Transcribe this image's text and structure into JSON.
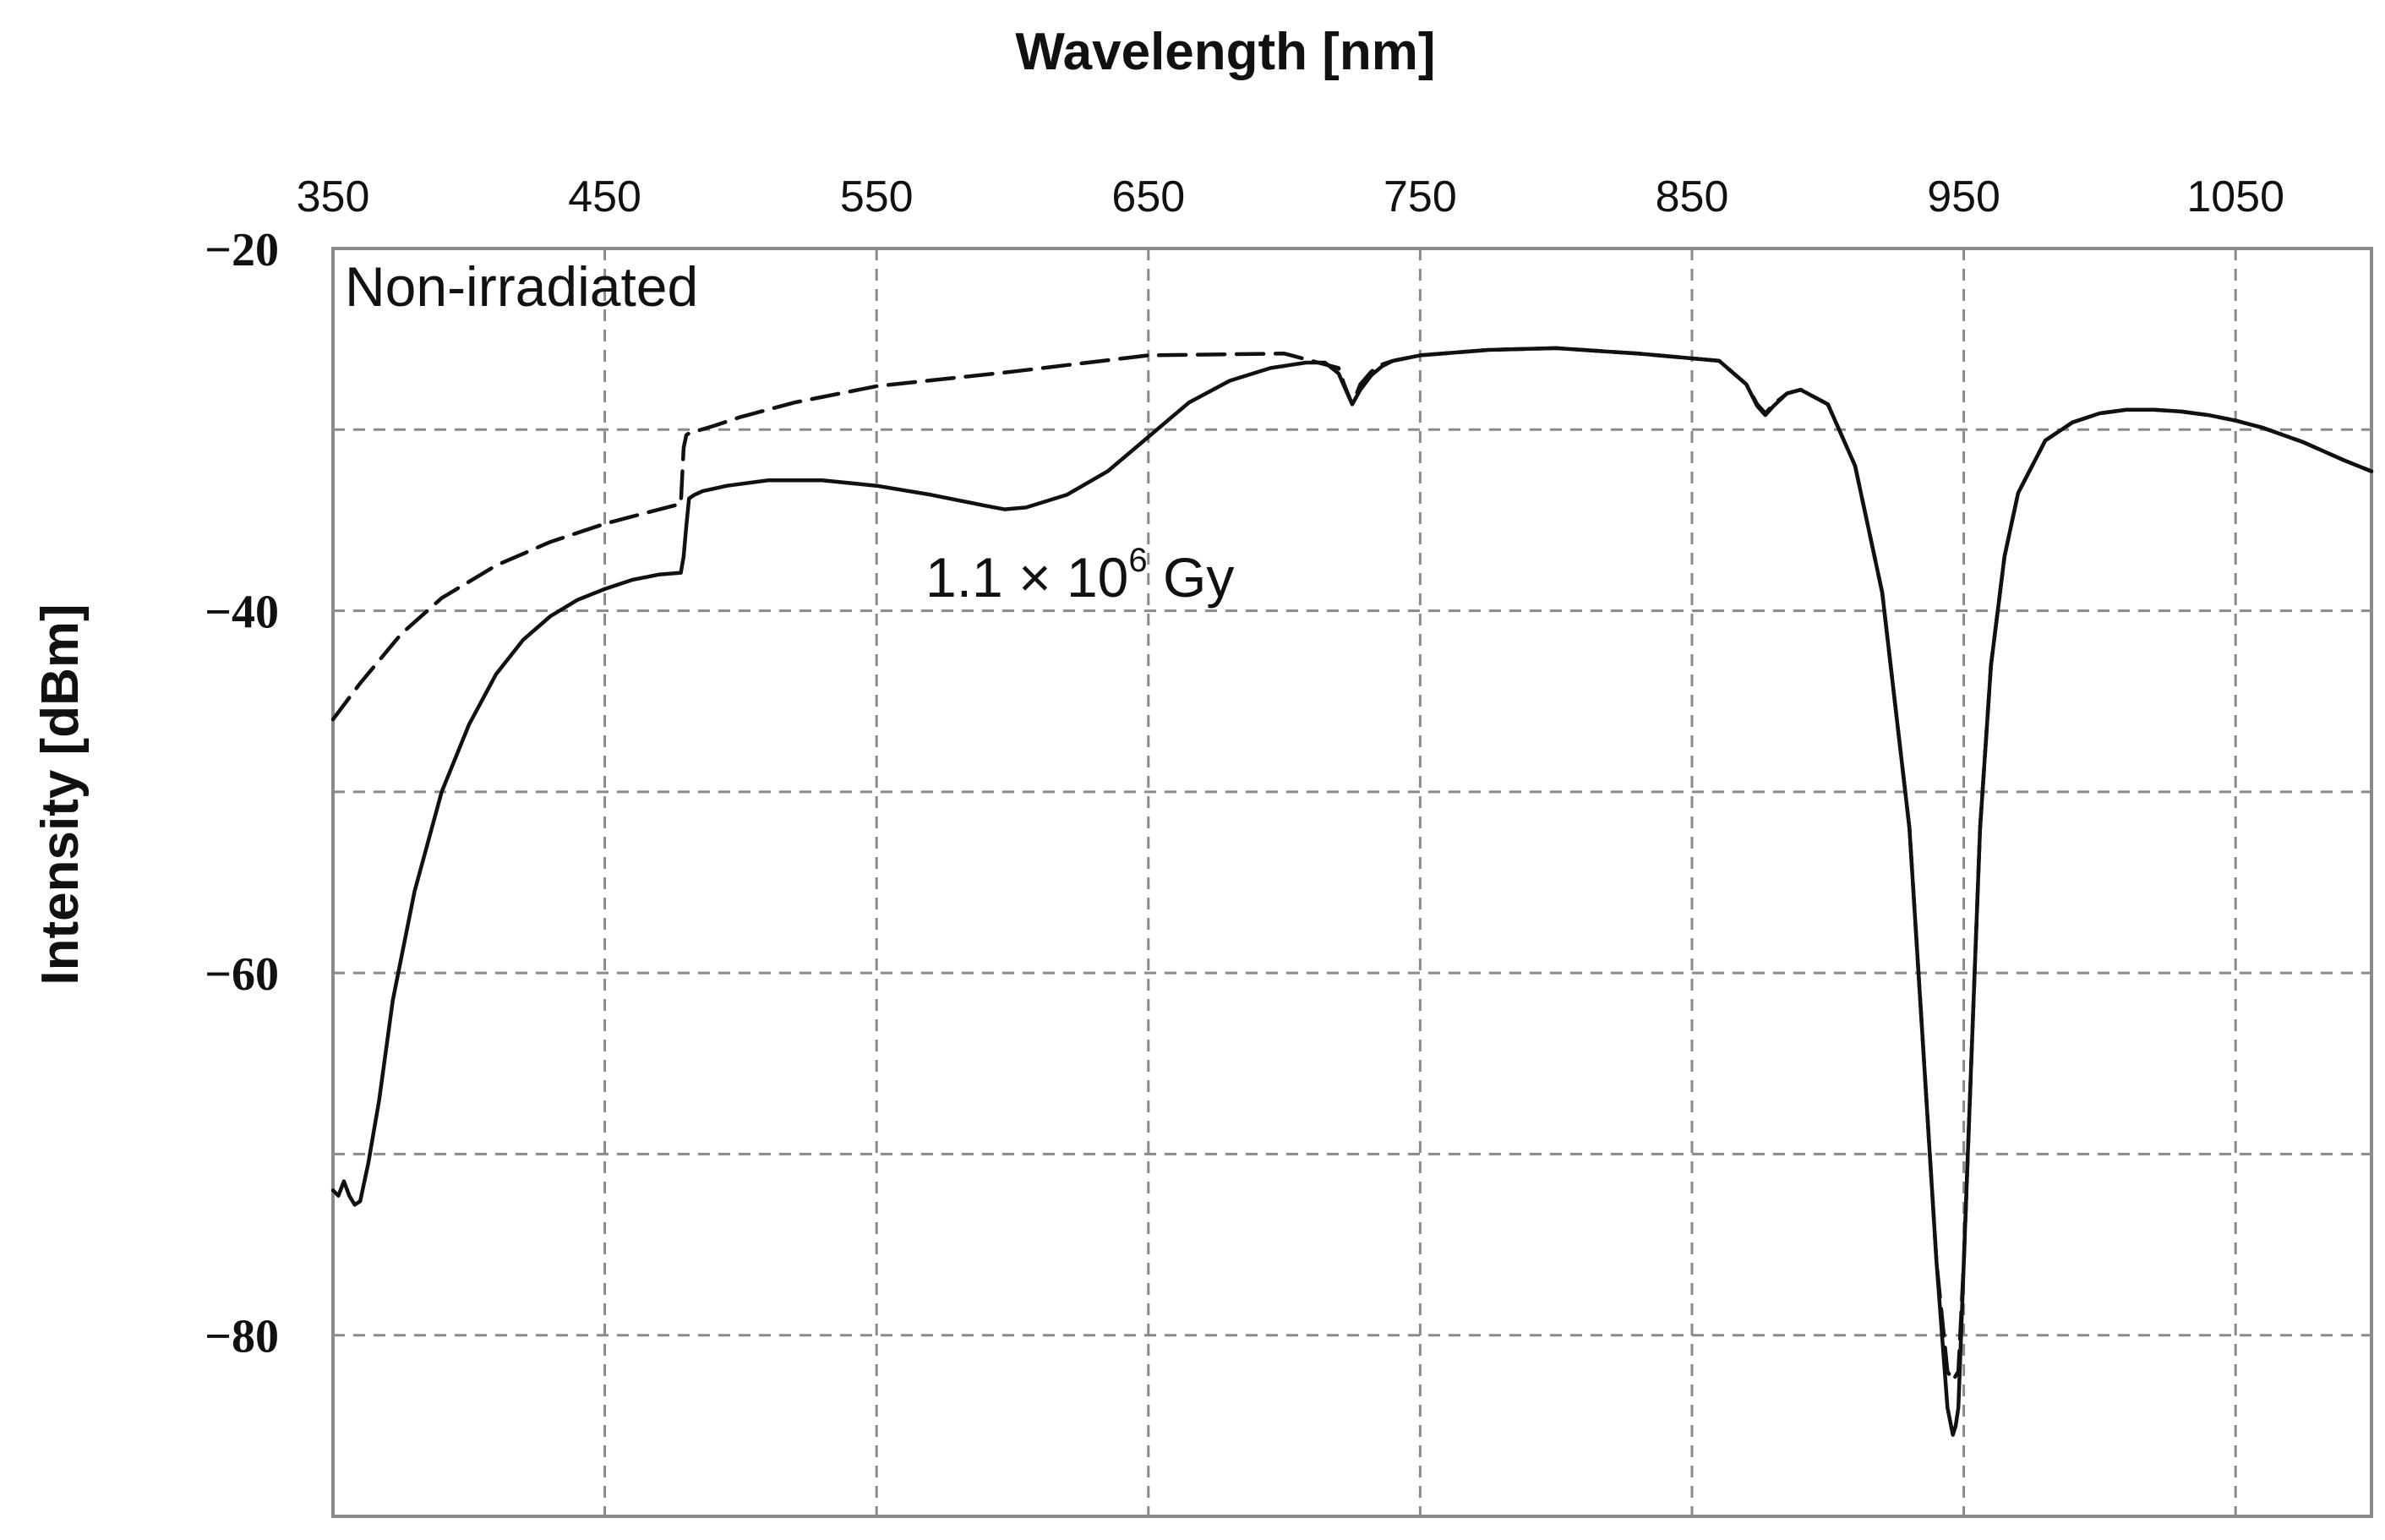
{
  "chart_data": {
    "type": "line",
    "title": "",
    "xlabel": "Wavelength [nm]",
    "ylabel": "Intensity [dBm]",
    "xlim": [
      350,
      1100
    ],
    "ylim": [
      -90,
      -20
    ],
    "x_ticks": [
      350,
      450,
      550,
      650,
      750,
      850,
      950,
      1050
    ],
    "x_tick_labels": [
      "350",
      "450",
      "550",
      "650",
      "750",
      "850",
      "950",
      "1050"
    ],
    "x_axis_position": "top",
    "y_ticks": [
      -20,
      -40,
      -60,
      -80
    ],
    "y_tick_labels": [
      "−20",
      "−40",
      "−60",
      "−80"
    ],
    "y_gridlines": [
      -30,
      -40,
      -50,
      -60,
      -70,
      -80
    ],
    "x_gridlines": [
      450,
      550,
      650,
      750,
      850,
      950,
      1050
    ],
    "grid": true,
    "annotations": [
      {
        "name": "non-irradiated",
        "text": "Non-irradiated",
        "x": 355,
        "y": -21.5
      },
      {
        "name": "irradiated-dose",
        "text_main": "1.1 × 10",
        "text_sup": "6",
        "text_unit": " Gy",
        "x": 570,
        "y": -38
      }
    ],
    "series": [
      {
        "name": "Non-irradiated",
        "style": "dashed",
        "x": [
          350,
          360,
          375,
          390,
          410,
          430,
          450,
          465,
          478,
          479,
          480,
          481,
          490,
          500,
          520,
          550,
          600,
          650,
          700,
          720,
          722,
          725,
          728,
          732,
          736,
          740,
          750,
          775,
          800,
          830,
          860,
          870,
          874,
          877,
          880,
          885,
          890,
          900,
          910,
          920,
          930,
          935,
          940,
          944,
          946,
          948,
          950,
          953,
          956,
          960,
          965,
          970,
          980,
          990,
          1000,
          1010,
          1020,
          1030,
          1040,
          1050,
          1060,
          1075,
          1090,
          1100
        ],
        "y": [
          -46.0,
          -44.0,
          -41.3,
          -39.3,
          -37.5,
          -36.2,
          -35.2,
          -34.6,
          -34.1,
          -31.0,
          -30.3,
          -30.2,
          -29.8,
          -29.3,
          -28.5,
          -27.6,
          -26.8,
          -25.9,
          -25.8,
          -26.6,
          -27.5,
          -28.6,
          -27.5,
          -26.8,
          -26.4,
          -26.2,
          -25.9,
          -25.6,
          -25.5,
          -25.8,
          -26.2,
          -27.5,
          -28.6,
          -29.1,
          -28.6,
          -28.0,
          -27.8,
          -28.6,
          -32.0,
          -39.0,
          -52.0,
          -64.0,
          -76.0,
          -82.0,
          -82.5,
          -82.0,
          -76.0,
          -64.0,
          -52.0,
          -43.0,
          -37.0,
          -33.5,
          -30.6,
          -29.6,
          -29.1,
          -28.9,
          -28.9,
          -29.0,
          -29.2,
          -29.5,
          -29.9,
          -30.7,
          -31.7,
          -32.3
        ]
      },
      {
        "name": "1.1 × 10^6 Gy",
        "style": "solid",
        "x": [
          350,
          352,
          354,
          356,
          358,
          360,
          363,
          367,
          372,
          380,
          390,
          400,
          410,
          420,
          430,
          440,
          450,
          460,
          470,
          478,
          479,
          480,
          481,
          483,
          486,
          495,
          510,
          530,
          550,
          570,
          590,
          597,
          605,
          620,
          635,
          650,
          665,
          680,
          695,
          708,
          715,
          720,
          722,
          725,
          728,
          732,
          736,
          740,
          750,
          775,
          800,
          830,
          860,
          870,
          874,
          877,
          880,
          885,
          890,
          900,
          910,
          920,
          930,
          935,
          940,
          944,
          946,
          947,
          948,
          950,
          953,
          956,
          960,
          965,
          970,
          980,
          990,
          1000,
          1010,
          1020,
          1030,
          1040,
          1050,
          1060,
          1075,
          1090,
          1100
        ],
        "y": [
          -72.0,
          -72.3,
          -71.5,
          -72.3,
          -72.8,
          -72.6,
          -70.5,
          -67.0,
          -61.5,
          -55.5,
          -50.0,
          -46.3,
          -43.5,
          -41.6,
          -40.3,
          -39.4,
          -38.8,
          -38.3,
          -38.0,
          -37.9,
          -37.0,
          -35.3,
          -33.8,
          -33.6,
          -33.4,
          -33.1,
          -32.8,
          -32.8,
          -33.1,
          -33.6,
          -34.2,
          -34.4,
          -34.3,
          -33.6,
          -32.3,
          -30.4,
          -28.5,
          -27.3,
          -26.6,
          -26.3,
          -26.3,
          -26.9,
          -27.6,
          -28.6,
          -27.8,
          -27.0,
          -26.5,
          -26.2,
          -25.9,
          -25.6,
          -25.5,
          -25.8,
          -26.2,
          -27.5,
          -28.7,
          -29.2,
          -28.7,
          -28.0,
          -27.8,
          -28.6,
          -32.0,
          -39.0,
          -52.0,
          -64.0,
          -76.0,
          -84.0,
          -85.5,
          -85.0,
          -84.0,
          -76.0,
          -64.0,
          -52.0,
          -43.0,
          -37.0,
          -33.5,
          -30.6,
          -29.6,
          -29.1,
          -28.9,
          -28.9,
          -29.0,
          -29.2,
          -29.5,
          -29.9,
          -30.7,
          -31.7,
          -32.3
        ]
      }
    ]
  }
}
